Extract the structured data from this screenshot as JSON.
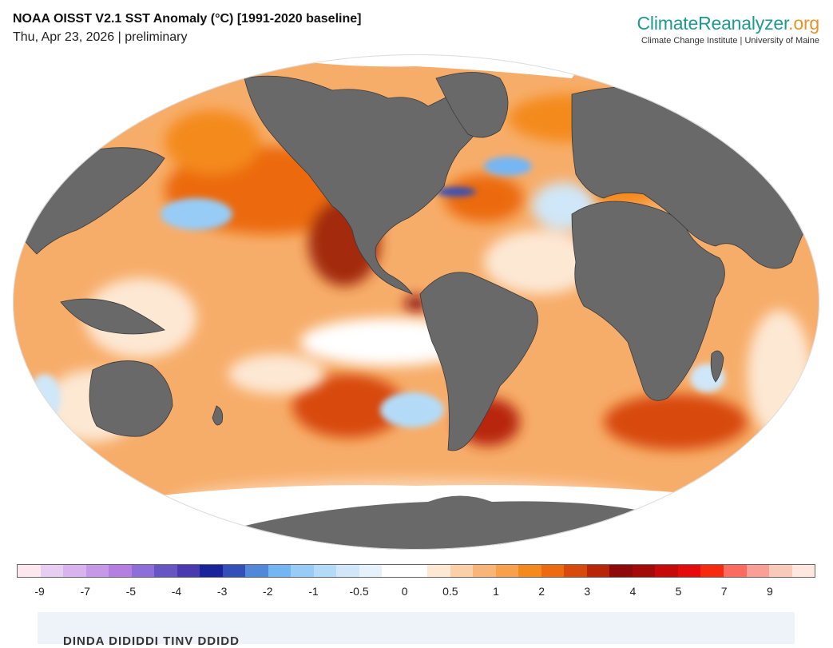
{
  "header": {
    "title": "NOAA OISST V2.1 SST Anomaly (°C) [1991-2020 baseline]",
    "date_line": "Thu, Apr 23, 2026 | preliminary"
  },
  "brand": {
    "logo_part1": "Climate",
    "logo_part2": "Reanalyzer",
    "logo_part3": ".org",
    "subtitle": "Climate Change Institute | University of Maine"
  },
  "legend": {
    "ticks": [
      "-9",
      "-7",
      "-5",
      "-4",
      "-3",
      "-2",
      "-1",
      "-0.5",
      "0",
      "0.5",
      "1",
      "2",
      "3",
      "4",
      "5",
      "7",
      "9"
    ],
    "colors": [
      "#fde7ee",
      "#e8cdf2",
      "#d8b3ee",
      "#c898e8",
      "#b47fe0",
      "#8e6ed8",
      "#6755c4",
      "#4a3ab0",
      "#19239a",
      "#3450b8",
      "#5188d8",
      "#74b6f4",
      "#97ccf7",
      "#b3dbf8",
      "#cfe7f8",
      "#e6f2fb",
      "#ffffff",
      "#ffffff",
      "#fde8d4",
      "#fbd0a8",
      "#f9b478",
      "#f8a04c",
      "#f48a1e",
      "#ec6a10",
      "#d84a0c",
      "#b8260a",
      "#8e0a0a",
      "#a30a0a",
      "#c40a0a",
      "#e30b0b",
      "#f62a0f",
      "#fb6b5f",
      "#fa9f96",
      "#f9cab7",
      "#fde7df"
    ]
  },
  "map": {
    "ocean_base_color": "#f7ad6a",
    "land_color": "#696969",
    "ice_color": "#ffffff"
  },
  "footer": {
    "text": "DINDA DIDIDDI TINV DDIDD"
  }
}
